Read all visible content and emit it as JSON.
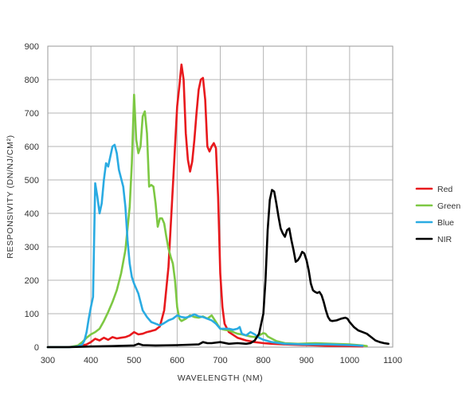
{
  "chart_data": {
    "type": "line",
    "xlabel": "WAVELENGTH (NM)",
    "ylabel": "RESPONSIVITY (DN/NJ/CM²)",
    "xlim": [
      300,
      1100
    ],
    "ylim": [
      0,
      900
    ],
    "x_ticks": [
      300,
      400,
      500,
      600,
      700,
      800,
      900,
      1000,
      1100
    ],
    "y_ticks": [
      0,
      100,
      200,
      300,
      400,
      500,
      600,
      700,
      800,
      900
    ],
    "grid": true,
    "legend_position": "right",
    "series": [
      {
        "name": "Red",
        "color": "#e8191d",
        "points": [
          [
            300,
            0
          ],
          [
            340,
            0
          ],
          [
            370,
            2
          ],
          [
            390,
            8
          ],
          [
            400,
            15
          ],
          [
            410,
            25
          ],
          [
            420,
            20
          ],
          [
            430,
            28
          ],
          [
            440,
            22
          ],
          [
            450,
            30
          ],
          [
            460,
            26
          ],
          [
            470,
            28
          ],
          [
            480,
            30
          ],
          [
            490,
            35
          ],
          [
            500,
            45
          ],
          [
            510,
            38
          ],
          [
            520,
            40
          ],
          [
            530,
            45
          ],
          [
            540,
            48
          ],
          [
            550,
            52
          ],
          [
            560,
            62
          ],
          [
            570,
            110
          ],
          [
            580,
            240
          ],
          [
            590,
            480
          ],
          [
            600,
            720
          ],
          [
            605,
            780
          ],
          [
            610,
            845
          ],
          [
            615,
            800
          ],
          [
            620,
            640
          ],
          [
            625,
            560
          ],
          [
            630,
            525
          ],
          [
            635,
            555
          ],
          [
            640,
            620
          ],
          [
            645,
            700
          ],
          [
            650,
            770
          ],
          [
            655,
            800
          ],
          [
            660,
            805
          ],
          [
            665,
            740
          ],
          [
            670,
            600
          ],
          [
            675,
            585
          ],
          [
            680,
            600
          ],
          [
            685,
            610
          ],
          [
            690,
            595
          ],
          [
            695,
            450
          ],
          [
            700,
            220
          ],
          [
            705,
            120
          ],
          [
            710,
            70
          ],
          [
            720,
            45
          ],
          [
            740,
            28
          ],
          [
            760,
            20
          ],
          [
            780,
            15
          ],
          [
            800,
            12
          ],
          [
            820,
            10
          ],
          [
            850,
            8
          ],
          [
            900,
            6
          ],
          [
            950,
            4
          ],
          [
            1000,
            3
          ],
          [
            1030,
            2
          ]
        ]
      },
      {
        "name": "Green",
        "color": "#7dc843",
        "points": [
          [
            300,
            0
          ],
          [
            350,
            0
          ],
          [
            370,
            5
          ],
          [
            380,
            15
          ],
          [
            390,
            28
          ],
          [
            400,
            38
          ],
          [
            410,
            45
          ],
          [
            420,
            55
          ],
          [
            430,
            78
          ],
          [
            440,
            105
          ],
          [
            450,
            135
          ],
          [
            460,
            170
          ],
          [
            470,
            220
          ],
          [
            480,
            290
          ],
          [
            490,
            420
          ],
          [
            495,
            550
          ],
          [
            500,
            755
          ],
          [
            505,
            620
          ],
          [
            510,
            580
          ],
          [
            515,
            600
          ],
          [
            520,
            690
          ],
          [
            525,
            705
          ],
          [
            530,
            640
          ],
          [
            535,
            480
          ],
          [
            540,
            485
          ],
          [
            545,
            480
          ],
          [
            550,
            430
          ],
          [
            555,
            360
          ],
          [
            560,
            385
          ],
          [
            565,
            385
          ],
          [
            570,
            370
          ],
          [
            575,
            330
          ],
          [
            580,
            295
          ],
          [
            585,
            270
          ],
          [
            590,
            250
          ],
          [
            595,
            200
          ],
          [
            600,
            120
          ],
          [
            605,
            85
          ],
          [
            610,
            78
          ],
          [
            620,
            85
          ],
          [
            630,
            95
          ],
          [
            640,
            90
          ],
          [
            650,
            88
          ],
          [
            660,
            92
          ],
          [
            670,
            85
          ],
          [
            680,
            95
          ],
          [
            690,
            75
          ],
          [
            700,
            55
          ],
          [
            710,
            52
          ],
          [
            720,
            50
          ],
          [
            730,
            45
          ],
          [
            740,
            40
          ],
          [
            750,
            38
          ],
          [
            760,
            35
          ],
          [
            770,
            32
          ],
          [
            780,
            30
          ],
          [
            790,
            35
          ],
          [
            800,
            42
          ],
          [
            805,
            40
          ],
          [
            810,
            32
          ],
          [
            820,
            25
          ],
          [
            830,
            18
          ],
          [
            850,
            12
          ],
          [
            880,
            10
          ],
          [
            920,
            12
          ],
          [
            960,
            10
          ],
          [
            1000,
            8
          ],
          [
            1030,
            5
          ],
          [
            1040,
            3
          ]
        ]
      },
      {
        "name": "Blue",
        "color": "#2aabe2",
        "points": [
          [
            300,
            0
          ],
          [
            350,
            0
          ],
          [
            370,
            2
          ],
          [
            380,
            8
          ],
          [
            385,
            20
          ],
          [
            390,
            45
          ],
          [
            395,
            85
          ],
          [
            400,
            120
          ],
          [
            405,
            150
          ],
          [
            410,
            490
          ],
          [
            415,
            450
          ],
          [
            420,
            400
          ],
          [
            425,
            430
          ],
          [
            430,
            500
          ],
          [
            435,
            550
          ],
          [
            440,
            540
          ],
          [
            445,
            570
          ],
          [
            450,
            600
          ],
          [
            455,
            605
          ],
          [
            460,
            580
          ],
          [
            465,
            530
          ],
          [
            470,
            505
          ],
          [
            475,
            480
          ],
          [
            480,
            420
          ],
          [
            485,
            320
          ],
          [
            490,
            250
          ],
          [
            495,
            210
          ],
          [
            500,
            190
          ],
          [
            510,
            160
          ],
          [
            520,
            110
          ],
          [
            530,
            90
          ],
          [
            540,
            75
          ],
          [
            550,
            70
          ],
          [
            560,
            65
          ],
          [
            570,
            72
          ],
          [
            580,
            80
          ],
          [
            590,
            85
          ],
          [
            600,
            95
          ],
          [
            610,
            90
          ],
          [
            620,
            88
          ],
          [
            630,
            92
          ],
          [
            640,
            98
          ],
          [
            650,
            92
          ],
          [
            660,
            90
          ],
          [
            670,
            85
          ],
          [
            680,
            80
          ],
          [
            690,
            70
          ],
          [
            700,
            55
          ],
          [
            710,
            55
          ],
          [
            720,
            55
          ],
          [
            730,
            52
          ],
          [
            740,
            55
          ],
          [
            745,
            60
          ],
          [
            750,
            40
          ],
          [
            760,
            35
          ],
          [
            770,
            45
          ],
          [
            780,
            38
          ],
          [
            790,
            28
          ],
          [
            800,
            22
          ],
          [
            820,
            15
          ],
          [
            850,
            10
          ],
          [
            900,
            8
          ],
          [
            950,
            8
          ],
          [
            1000,
            6
          ],
          [
            1030,
            4
          ]
        ]
      },
      {
        "name": "NIR",
        "color": "#000000",
        "points": [
          [
            300,
            0
          ],
          [
            350,
            0
          ],
          [
            400,
            2
          ],
          [
            450,
            3
          ],
          [
            500,
            5
          ],
          [
            510,
            10
          ],
          [
            520,
            6
          ],
          [
            550,
            5
          ],
          [
            600,
            6
          ],
          [
            650,
            8
          ],
          [
            660,
            15
          ],
          [
            670,
            12
          ],
          [
            680,
            12
          ],
          [
            700,
            15
          ],
          [
            720,
            10
          ],
          [
            740,
            12
          ],
          [
            760,
            10
          ],
          [
            770,
            12
          ],
          [
            780,
            20
          ],
          [
            790,
            40
          ],
          [
            800,
            100
          ],
          [
            805,
            200
          ],
          [
            810,
            350
          ],
          [
            815,
            440
          ],
          [
            820,
            470
          ],
          [
            825,
            465
          ],
          [
            830,
            430
          ],
          [
            835,
            390
          ],
          [
            840,
            355
          ],
          [
            845,
            340
          ],
          [
            850,
            330
          ],
          [
            855,
            350
          ],
          [
            860,
            355
          ],
          [
            865,
            320
          ],
          [
            870,
            290
          ],
          [
            875,
            255
          ],
          [
            880,
            260
          ],
          [
            885,
            270
          ],
          [
            890,
            285
          ],
          [
            895,
            280
          ],
          [
            900,
            260
          ],
          [
            905,
            230
          ],
          [
            910,
            190
          ],
          [
            915,
            170
          ],
          [
            920,
            165
          ],
          [
            925,
            162
          ],
          [
            930,
            165
          ],
          [
            935,
            155
          ],
          [
            940,
            135
          ],
          [
            945,
            110
          ],
          [
            950,
            90
          ],
          [
            955,
            80
          ],
          [
            960,
            78
          ],
          [
            970,
            80
          ],
          [
            980,
            85
          ],
          [
            990,
            88
          ],
          [
            995,
            85
          ],
          [
            1000,
            75
          ],
          [
            1010,
            60
          ],
          [
            1020,
            50
          ],
          [
            1030,
            45
          ],
          [
            1040,
            40
          ],
          [
            1050,
            30
          ],
          [
            1060,
            20
          ],
          [
            1070,
            15
          ],
          [
            1080,
            12
          ],
          [
            1090,
            10
          ]
        ]
      }
    ]
  }
}
